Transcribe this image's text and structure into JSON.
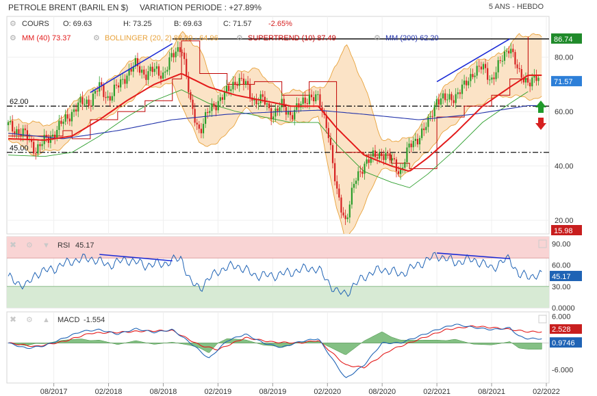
{
  "header": {
    "instrument": "PETROLE BRENT (BARIL EN $)",
    "variation": "VARIATION PERIODE : +27.89%",
    "period": "5 ANS - HEBDO"
  },
  "legend": {
    "cours": "COURS",
    "open": "O: 69.63",
    "high": "H: 73.25",
    "low": "B: 69.63",
    "close": "C: 71.57",
    "change": "-2.65%",
    "mm40": "MM (40)  73.37",
    "bollinger": "BOLLINGER (20, 2)  88.09 - 64.96",
    "supertrend": "SUPERTREND (10)  87.49",
    "mm200": "MM (200)  62.20"
  },
  "colors": {
    "mm40": "#e31a1a",
    "bollinger": "#e8a23a",
    "supertrend": "#c00000",
    "mm200": "#2233aa",
    "up": "#2a9d2a",
    "down": "#d62020",
    "rsi": "#1f63b5",
    "macd": "#1f63b5",
    "signal": "#e31a1a",
    "hist": "#3a9d3a"
  },
  "chart_data": [
    {
      "type": "candlestick",
      "name": "price",
      "ylim": [
        15,
        95
      ],
      "y_ticks": [
        "80.00",
        "60.00",
        "40.00",
        "20.00"
      ],
      "x_ticks": [
        "08/2017",
        "02/2018",
        "08/2018",
        "02/2019",
        "08/2019",
        "02/2020",
        "08/2020",
        "02/2021",
        "08/2021",
        "02/2022"
      ],
      "x_range": [
        "2017-03",
        "2022-02"
      ],
      "levels": [
        {
          "label": "62.00",
          "value": 62.0
        },
        {
          "label": "45.00",
          "value": 45.0
        }
      ],
      "resistance": 86.74,
      "badges": {
        "high": "86.74",
        "last": "71.57",
        "low": "15.98"
      },
      "close_path": [
        [
          "2017-03",
          55
        ],
        [
          "2017-05",
          51
        ],
        [
          "2017-06",
          46
        ],
        [
          "2017-07",
          49
        ],
        [
          "2017-08",
          52
        ],
        [
          "2017-09",
          56
        ],
        [
          "2017-10",
          60
        ],
        [
          "2017-11",
          63
        ],
        [
          "2017-12",
          64
        ],
        [
          "2018-01",
          69
        ],
        [
          "2018-02",
          65
        ],
        [
          "2018-03",
          69
        ],
        [
          "2018-04",
          74
        ],
        [
          "2018-05",
          77
        ],
        [
          "2018-06",
          74
        ],
        [
          "2018-07",
          75
        ],
        [
          "2018-08",
          74
        ],
        [
          "2018-09",
          80
        ],
        [
          "2018-10",
          85
        ],
        [
          "2018-11",
          62
        ],
        [
          "2018-12",
          53
        ],
        [
          "2019-01",
          60
        ],
        [
          "2019-02",
          64
        ],
        [
          "2019-03",
          67
        ],
        [
          "2019-04",
          72
        ],
        [
          "2019-05",
          70
        ],
        [
          "2019-06",
          64
        ],
        [
          "2019-07",
          64
        ],
        [
          "2019-08",
          59
        ],
        [
          "2019-09",
          62
        ],
        [
          "2019-10",
          59
        ],
        [
          "2019-11",
          62
        ],
        [
          "2019-12",
          66
        ],
        [
          "2020-01",
          64
        ],
        [
          "2020-02",
          55
        ],
        [
          "2020-03",
          30
        ],
        [
          "2020-04",
          20
        ],
        [
          "2020-05",
          34
        ],
        [
          "2020-06",
          41
        ],
        [
          "2020-07",
          43
        ],
        [
          "2020-08",
          45
        ],
        [
          "2020-09",
          42
        ],
        [
          "2020-10",
          38
        ],
        [
          "2020-11",
          47
        ],
        [
          "2020-12",
          51
        ],
        [
          "2021-01",
          55
        ],
        [
          "2021-02",
          65
        ],
        [
          "2021-03",
          64
        ],
        [
          "2021-04",
          66
        ],
        [
          "2021-05",
          69
        ],
        [
          "2021-06",
          75
        ],
        [
          "2021-07",
          76
        ],
        [
          "2021-08",
          72
        ],
        [
          "2021-09",
          78
        ],
        [
          "2021-10",
          85
        ],
        [
          "2021-11",
          73
        ],
        [
          "2021-12",
          71.57
        ]
      ],
      "mm40": [
        [
          "2017-03",
          50
        ],
        [
          "2017-07",
          49.5
        ],
        [
          "2017-10",
          51
        ],
        [
          "2018-01",
          57
        ],
        [
          "2018-04",
          64
        ],
        [
          "2018-07",
          70
        ],
        [
          "2018-10",
          74
        ],
        [
          "2019-01",
          69
        ],
        [
          "2019-04",
          66
        ],
        [
          "2019-07",
          64
        ],
        [
          "2019-10",
          62
        ],
        [
          "2020-01",
          62
        ],
        [
          "2020-03",
          54
        ],
        [
          "2020-06",
          44
        ],
        [
          "2020-09",
          40
        ],
        [
          "2020-11",
          38
        ],
        [
          "2021-01",
          43
        ],
        [
          "2021-04",
          52
        ],
        [
          "2021-07",
          62
        ],
        [
          "2021-10",
          69
        ],
        [
          "2021-12",
          73.37
        ]
      ],
      "mm200": [
        [
          "2017-03",
          52
        ],
        [
          "2017-09",
          50
        ],
        [
          "2018-03",
          53
        ],
        [
          "2018-09",
          57
        ],
        [
          "2019-03",
          59
        ],
        [
          "2019-09",
          60
        ],
        [
          "2020-01",
          60.5
        ],
        [
          "2020-06",
          59
        ],
        [
          "2020-12",
          57
        ],
        [
          "2021-06",
          59
        ],
        [
          "2021-12",
          62.2
        ]
      ],
      "bollinger_upper": [
        [
          "2017-03",
          57
        ],
        [
          "2017-08",
          55
        ],
        [
          "2017-11",
          66
        ],
        [
          "2018-02",
          71
        ],
        [
          "2018-05",
          80
        ],
        [
          "2018-08",
          79
        ],
        [
          "2018-10",
          89
        ],
        [
          "2018-12",
          83
        ],
        [
          "2019-02",
          66
        ],
        [
          "2019-04",
          74
        ],
        [
          "2019-06",
          76
        ],
        [
          "2019-09",
          67
        ],
        [
          "2019-12",
          68
        ],
        [
          "2020-02",
          70
        ],
        [
          "2020-04",
          85
        ],
        [
          "2020-06",
          70
        ],
        [
          "2020-08",
          49
        ],
        [
          "2020-11",
          50
        ],
        [
          "2021-01",
          58
        ],
        [
          "2021-03",
          70
        ],
        [
          "2021-06",
          78
        ],
        [
          "2021-09",
          81
        ],
        [
          "2021-11",
          88.09
        ],
        [
          "2021-12",
          88
        ]
      ],
      "bollinger_lower": [
        [
          "2017-03",
          50
        ],
        [
          "2017-06",
          44
        ],
        [
          "2017-09",
          47
        ],
        [
          "2017-12",
          56
        ],
        [
          "2018-03",
          60
        ],
        [
          "2018-06",
          69
        ],
        [
          "2018-09",
          70
        ],
        [
          "2018-12",
          48
        ],
        [
          "2019-02",
          48
        ],
        [
          "2019-05",
          61
        ],
        [
          "2019-08",
          56
        ],
        [
          "2019-11",
          56
        ],
        [
          "2020-01",
          58
        ],
        [
          "2020-03",
          25
        ],
        [
          "2020-04",
          12
        ],
        [
          "2020-06",
          25
        ],
        [
          "2020-08",
          40
        ],
        [
          "2020-10",
          36
        ],
        [
          "2020-12",
          42
        ],
        [
          "2021-03",
          53
        ],
        [
          "2021-06",
          62
        ],
        [
          "2021-09",
          66
        ],
        [
          "2021-12",
          64.96
        ]
      ],
      "supertrend": [
        [
          "2017-03",
          51
        ],
        [
          "2017-09",
          53
        ],
        [
          "2017-10",
          50
        ],
        [
          "2017-12",
          57
        ],
        [
          "2018-03",
          60
        ],
        [
          "2018-06",
          64
        ],
        [
          "2018-09",
          72
        ],
        [
          "2018-10",
          86
        ],
        [
          "2018-12",
          74
        ],
        [
          "2019-03",
          70
        ],
        [
          "2019-06",
          71
        ],
        [
          "2019-09",
          66
        ],
        [
          "2019-12",
          71
        ],
        [
          "2020-02",
          71
        ],
        [
          "2020-03",
          45
        ],
        [
          "2020-06",
          44
        ],
        [
          "2020-09",
          41
        ],
        [
          "2020-11",
          39
        ],
        [
          "2021-02",
          58
        ],
        [
          "2021-05",
          62
        ],
        [
          "2021-08",
          66
        ],
        [
          "2021-10",
          72
        ],
        [
          "2021-12",
          87.49
        ]
      ],
      "trendlines": [
        {
          "from": [
            "2017-12",
            67
          ],
          "to": [
            "2018-09",
            85
          ],
          "color": "#1a2ad6"
        },
        {
          "from": [
            "2021-02",
            71
          ],
          "to": [
            "2021-10",
            86.74
          ],
          "color": "#1a2ad6"
        }
      ]
    },
    {
      "type": "line",
      "name": "rsi",
      "label": "RSI",
      "value": "45.17",
      "ylim": [
        0,
        100
      ],
      "y_ticks": [
        "90.00",
        "60.00",
        "30.00",
        "0.0000"
      ],
      "zones": {
        "overbought": 70,
        "oversold": 30
      },
      "series": [
        [
          "2017-03",
          42
        ],
        [
          "2017-05",
          30
        ],
        [
          "2017-06",
          48
        ],
        [
          "2017-08",
          55
        ],
        [
          "2017-10",
          66
        ],
        [
          "2017-12",
          70
        ],
        [
          "2018-02",
          60
        ],
        [
          "2018-04",
          68
        ],
        [
          "2018-06",
          60
        ],
        [
          "2018-08",
          62
        ],
        [
          "2018-10",
          70
        ],
        [
          "2018-11",
          35
        ],
        [
          "2018-12",
          28
        ],
        [
          "2019-02",
          52
        ],
        [
          "2019-04",
          60
        ],
        [
          "2019-06",
          46
        ],
        [
          "2019-08",
          45
        ],
        [
          "2019-10",
          50
        ],
        [
          "2019-12",
          56
        ],
        [
          "2020-01",
          54
        ],
        [
          "2020-03",
          22
        ],
        [
          "2020-04",
          20
        ],
        [
          "2020-06",
          44
        ],
        [
          "2020-08",
          55
        ],
        [
          "2020-10",
          47
        ],
        [
          "2020-12",
          61
        ],
        [
          "2021-02",
          74
        ],
        [
          "2021-04",
          64
        ],
        [
          "2021-06",
          68
        ],
        [
          "2021-08",
          56
        ],
        [
          "2021-10",
          70
        ],
        [
          "2021-11",
          45
        ],
        [
          "2021-12",
          45.17
        ]
      ],
      "trendlines": [
        {
          "from": [
            "2018-01",
            75
          ],
          "to": [
            "2018-09",
            66
          ],
          "color": "#1a2ad6"
        },
        {
          "from": [
            "2021-02",
            77
          ],
          "to": [
            "2021-10",
            69
          ],
          "color": "#1a2ad6"
        }
      ]
    },
    {
      "type": "line",
      "name": "macd",
      "label": "MACD",
      "value": "-1.554",
      "ylim": [
        -9,
        7
      ],
      "y_ticks": [
        "6.000",
        "-6.000"
      ],
      "badges": {
        "signal": "2.528",
        "macd": "0.9746"
      },
      "macd": [
        [
          "2017-03",
          0
        ],
        [
          "2017-05",
          -1.2
        ],
        [
          "2017-07",
          -0.6
        ],
        [
          "2017-09",
          1
        ],
        [
          "2017-11",
          2.6
        ],
        [
          "2018-01",
          3
        ],
        [
          "2018-03",
          2
        ],
        [
          "2018-05",
          3.2
        ],
        [
          "2018-07",
          2.4
        ],
        [
          "2018-09",
          3
        ],
        [
          "2018-11",
          0
        ],
        [
          "2019-01",
          -3.5
        ],
        [
          "2019-03",
          0.5
        ],
        [
          "2019-05",
          2
        ],
        [
          "2019-07",
          0
        ],
        [
          "2019-09",
          -1
        ],
        [
          "2019-11",
          0.3
        ],
        [
          "2020-01",
          1
        ],
        [
          "2020-03",
          -5
        ],
        [
          "2020-04",
          -8
        ],
        [
          "2020-06",
          -5
        ],
        [
          "2020-08",
          0
        ],
        [
          "2020-10",
          0
        ],
        [
          "2020-12",
          1.5
        ],
        [
          "2021-02",
          3
        ],
        [
          "2021-04",
          4.2
        ],
        [
          "2021-06",
          3.5
        ],
        [
          "2021-08",
          3
        ],
        [
          "2021-10",
          3.4
        ],
        [
          "2021-11",
          1.5
        ],
        [
          "2021-12",
          0.9746
        ]
      ],
      "signal": [
        [
          "2017-03",
          0
        ],
        [
          "2017-06",
          -0.8
        ],
        [
          "2017-09",
          0.3
        ],
        [
          "2017-12",
          2.2
        ],
        [
          "2018-03",
          2.4
        ],
        [
          "2018-06",
          2.7
        ],
        [
          "2018-09",
          2.8
        ],
        [
          "2018-12",
          -0.5
        ],
        [
          "2019-02",
          -1.5
        ],
        [
          "2019-05",
          1.2
        ],
        [
          "2019-08",
          0.2
        ],
        [
          "2019-11",
          0
        ],
        [
          "2020-01",
          0.6
        ],
        [
          "2020-04",
          -5
        ],
        [
          "2020-06",
          -5.5
        ],
        [
          "2020-09",
          -1.5
        ],
        [
          "2020-12",
          0.8
        ],
        [
          "2021-03",
          3
        ],
        [
          "2021-06",
          3.8
        ],
        [
          "2021-09",
          3.3
        ],
        [
          "2021-12",
          2.528
        ]
      ]
    }
  ]
}
